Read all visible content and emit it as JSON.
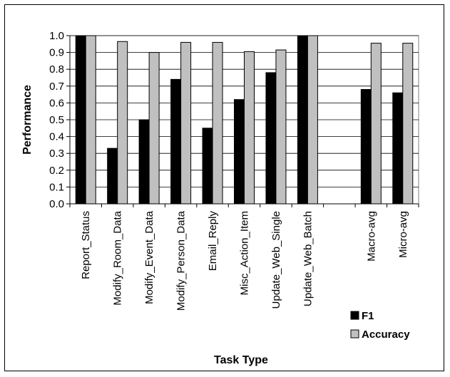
{
  "chart_data": {
    "type": "bar",
    "title": "",
    "xlabel": "Task Type",
    "ylabel": "Performance",
    "ylim": [
      0,
      1.0
    ],
    "yticks": [
      "0.0",
      "0.1",
      "0.2",
      "0.3",
      "0.4",
      "0.5",
      "0.6",
      "0.7",
      "0.8",
      "0.9",
      "1.0"
    ],
    "grid": true,
    "legend_position": "bottom-right",
    "categories": [
      "Report_Status",
      "Modify_Room_Data",
      "Modify_Event_Data",
      "Modify_Person_Data",
      "Email_Reply",
      "Misc_Action_Item",
      "Update_Web_Single",
      "Update_Web_Batch",
      "",
      "Macro-avg",
      "Micro-avg"
    ],
    "series": [
      {
        "name": "F1",
        "color": "#000000",
        "values": [
          1.0,
          0.33,
          0.5,
          0.74,
          0.45,
          0.62,
          0.78,
          1.0,
          null,
          0.68,
          0.66
        ]
      },
      {
        "name": "Accuracy",
        "color": "#c0c0c0",
        "values": [
          1.0,
          0.965,
          0.9,
          0.96,
          0.96,
          0.905,
          0.915,
          1.0,
          null,
          0.955,
          0.955
        ]
      }
    ]
  }
}
